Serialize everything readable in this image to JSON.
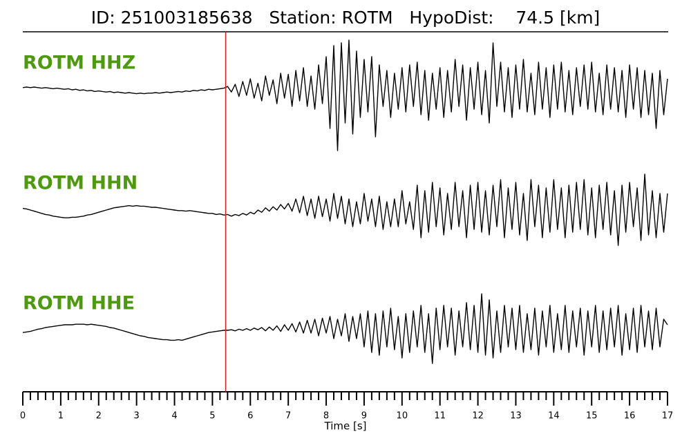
{
  "chart_data": {
    "type": "seismogram",
    "title": "ID: 251003185638   Station: ROTM   HypoDist:    74.5 [km]",
    "xlabel": "Time [s]",
    "x": [
      0,
      0.1,
      0.2,
      0.3,
      0.4,
      0.5,
      0.6,
      0.7,
      0.8,
      0.9,
      1,
      1.1,
      1.2,
      1.3,
      1.4,
      1.5,
      1.6,
      1.7,
      1.8,
      1.9,
      2,
      2.1,
      2.2,
      2.3,
      2.4,
      2.5,
      2.6,
      2.7,
      2.8,
      2.9,
      3,
      3.1,
      3.2,
      3.3,
      3.4,
      3.5,
      3.6,
      3.7,
      3.8,
      3.9,
      4,
      4.1,
      4.2,
      4.3,
      4.4,
      4.5,
      4.6,
      4.7,
      4.8,
      4.9,
      5,
      5.1,
      5.2,
      5.3,
      5.4,
      5.5,
      5.6,
      5.7,
      5.8,
      5.9,
      6,
      6.1,
      6.2,
      6.3,
      6.4,
      6.5,
      6.6,
      6.7,
      6.8,
      6.9,
      7,
      7.1,
      7.2,
      7.3,
      7.4,
      7.5,
      7.6,
      7.7,
      7.8,
      7.9,
      8,
      8.1,
      8.2,
      8.3,
      8.4,
      8.5,
      8.6,
      8.7,
      8.8,
      8.9,
      9,
      9.1,
      9.2,
      9.3,
      9.4,
      9.5,
      9.6,
      9.7,
      9.8,
      9.9,
      10,
      10.1,
      10.2,
      10.3,
      10.4,
      10.5,
      10.6,
      10.7,
      10.8,
      10.9,
      11,
      11.1,
      11.2,
      11.3,
      11.4,
      11.5,
      11.6,
      11.7,
      11.8,
      11.9,
      12,
      12.1,
      12.2,
      12.3,
      12.4,
      12.5,
      12.6,
      12.7,
      12.8,
      12.9,
      13,
      13.1,
      13.2,
      13.3,
      13.4,
      13.5,
      13.6,
      13.7,
      13.8,
      13.9,
      14,
      14.1,
      14.2,
      14.3,
      14.4,
      14.5,
      14.6,
      14.7,
      14.8,
      14.9,
      15,
      15.1,
      15.2,
      15.3,
      15.4,
      15.5,
      15.6,
      15.7,
      15.8,
      15.9,
      16,
      16.1,
      16.2,
      16.3,
      16.4,
      16.5,
      16.6,
      16.7,
      16.8,
      16.9,
      17
    ],
    "xlim": [
      0,
      17
    ],
    "xticks": [
      0,
      1,
      2,
      3,
      4,
      5,
      6,
      7,
      8,
      9,
      10,
      11,
      12,
      13,
      14,
      15,
      16,
      17
    ],
    "xminorticks": [
      0.2,
      0.4,
      0.6,
      0.8,
      1.2,
      1.4,
      1.6,
      1.8,
      2.2,
      2.4,
      2.6,
      2.8,
      3.2,
      3.4,
      3.6,
      3.8,
      4.2,
      4.4,
      4.6,
      4.8,
      5.2,
      5.4,
      5.6,
      5.8,
      6.2,
      6.4,
      6.6,
      6.8,
      7.2,
      7.4,
      7.6,
      7.8,
      8.2,
      8.4,
      8.6,
      8.8,
      9.2,
      9.4,
      9.6,
      9.8,
      10.2,
      10.4,
      10.6,
      10.8,
      11.2,
      11.4,
      11.6,
      11.8,
      12.2,
      12.4,
      12.6,
      12.8,
      13.2,
      13.4,
      13.6,
      13.8,
      14.2,
      14.4,
      14.6,
      14.8,
      15.2,
      15.4,
      15.6,
      15.8,
      16.2,
      16.4,
      16.6,
      16.8
    ],
    "ylim": [
      -1,
      1
    ],
    "pick_time": 5.35,
    "pick_color": "#e8191c",
    "label_color": "#4d9a0e",
    "series": [
      {
        "name": "ROTM HHZ",
        "color": "#000000",
        "values": [
          0.04,
          0.05,
          0.04,
          0.05,
          0.04,
          0.03,
          0.04,
          0.03,
          0.02,
          0.03,
          0.02,
          0.01,
          0.02,
          0.0,
          0.01,
          -0.01,
          0.0,
          -0.02,
          -0.01,
          -0.03,
          -0.02,
          -0.03,
          -0.04,
          -0.03,
          -0.05,
          -0.04,
          -0.05,
          -0.06,
          -0.05,
          -0.06,
          -0.07,
          -0.06,
          -0.07,
          -0.06,
          -0.06,
          -0.05,
          -0.06,
          -0.05,
          -0.04,
          -0.05,
          -0.04,
          -0.03,
          -0.04,
          -0.02,
          -0.03,
          -0.01,
          -0.02,
          0.0,
          -0.01,
          0.01,
          0.0,
          0.01,
          0.02,
          0.03,
          0.06,
          -0.04,
          0.1,
          -0.12,
          0.15,
          -0.1,
          0.2,
          -0.15,
          0.12,
          -0.2,
          0.25,
          -0.1,
          0.18,
          -0.25,
          0.3,
          -0.15,
          0.28,
          -0.3,
          0.35,
          -0.2,
          0.4,
          -0.3,
          0.25,
          -0.35,
          0.45,
          -0.25,
          0.6,
          -0.7,
          0.8,
          -1.1,
          0.85,
          -0.6,
          0.9,
          -0.8,
          0.7,
          -0.5,
          0.55,
          -0.4,
          0.6,
          -0.85,
          0.45,
          -0.3,
          0.35,
          -0.5,
          0.3,
          -0.35,
          0.4,
          -0.4,
          0.45,
          -0.3,
          0.5,
          -0.45,
          0.35,
          -0.55,
          0.3,
          -0.35,
          0.4,
          -0.5,
          0.35,
          -0.4,
          0.55,
          -0.3,
          0.45,
          -0.55,
          0.4,
          -0.35,
          0.5,
          -0.45,
          0.35,
          -0.6,
          0.85,
          -0.3,
          0.5,
          -0.4,
          0.4,
          -0.5,
          0.45,
          -0.35,
          0.55,
          -0.4,
          0.3,
          -0.45,
          0.5,
          -0.35,
          0.4,
          -0.5,
          0.45,
          -0.35,
          0.5,
          -0.4,
          0.35,
          -0.45,
          0.4,
          -0.3,
          0.45,
          -0.35,
          0.5,
          -0.4,
          0.3,
          -0.45,
          0.45,
          -0.35,
          0.4,
          -0.4,
          0.35,
          -0.5,
          0.45,
          -0.35,
          0.4,
          -0.5,
          0.35,
          -0.45,
          0.3,
          -0.7,
          0.35,
          -0.45,
          0.2
        ]
      },
      {
        "name": "ROTM HHN",
        "color": "#000000",
        "values": [
          0.03,
          0.02,
          0.0,
          -0.02,
          -0.04,
          -0.06,
          -0.08,
          -0.09,
          -0.11,
          -0.12,
          -0.13,
          -0.14,
          -0.14,
          -0.13,
          -0.13,
          -0.12,
          -0.11,
          -0.09,
          -0.08,
          -0.06,
          -0.04,
          -0.02,
          0.0,
          0.02,
          0.04,
          0.05,
          0.06,
          0.07,
          0.08,
          0.07,
          0.08,
          0.07,
          0.07,
          0.06,
          0.05,
          0.05,
          0.04,
          0.03,
          0.02,
          0.01,
          0.0,
          -0.01,
          -0.01,
          -0.02,
          -0.01,
          -0.02,
          -0.03,
          -0.04,
          -0.05,
          -0.06,
          -0.06,
          -0.08,
          -0.07,
          -0.09,
          -0.08,
          -0.11,
          -0.08,
          -0.1,
          -0.06,
          -0.09,
          -0.04,
          -0.07,
          0.0,
          -0.04,
          0.04,
          -0.02,
          0.06,
          0.0,
          0.1,
          0.02,
          0.12,
          -0.02,
          0.2,
          -0.05,
          0.25,
          -0.1,
          0.2,
          -0.15,
          0.25,
          -0.12,
          0.2,
          -0.2,
          0.3,
          -0.15,
          0.25,
          -0.25,
          0.2,
          -0.3,
          0.15,
          -0.25,
          0.3,
          -0.2,
          0.2,
          -0.3,
          0.25,
          -0.35,
          0.15,
          -0.3,
          0.2,
          -0.3,
          0.35,
          -0.25,
          0.15,
          -0.35,
          0.45,
          -0.5,
          0.35,
          -0.4,
          0.5,
          -0.3,
          0.4,
          -0.45,
          0.3,
          -0.35,
          0.5,
          -0.3,
          0.35,
          -0.5,
          0.45,
          -0.35,
          0.5,
          -0.4,
          0.35,
          -0.45,
          0.45,
          -0.3,
          0.55,
          -0.5,
          0.4,
          -0.35,
          0.5,
          -0.45,
          0.3,
          -0.55,
          0.55,
          -0.3,
          0.45,
          -0.5,
          0.4,
          -0.4,
          0.55,
          -0.35,
          0.4,
          -0.5,
          0.45,
          -0.4,
          0.5,
          -0.35,
          0.55,
          -0.45,
          0.4,
          -0.5,
          0.45,
          -0.35,
          0.5,
          -0.45,
          0.35,
          -0.64,
          0.45,
          -0.4,
          0.5,
          -0.3,
          0.4,
          -0.55,
          0.65,
          -0.45,
          0.35,
          -0.5,
          0.3,
          -0.4,
          0.3
        ]
      },
      {
        "name": "ROTM HHE",
        "color": "#000000",
        "values": [
          -0.04,
          -0.03,
          -0.02,
          0.0,
          0.02,
          0.03,
          0.05,
          0.06,
          0.07,
          0.08,
          0.09,
          0.1,
          0.1,
          0.1,
          0.11,
          0.11,
          0.11,
          0.1,
          0.11,
          0.1,
          0.09,
          0.08,
          0.07,
          0.05,
          0.04,
          0.02,
          0.0,
          -0.02,
          -0.04,
          -0.06,
          -0.08,
          -0.1,
          -0.11,
          -0.13,
          -0.14,
          -0.15,
          -0.16,
          -0.17,
          -0.17,
          -0.18,
          -0.18,
          -0.17,
          -0.18,
          -0.16,
          -0.14,
          -0.12,
          -0.1,
          -0.08,
          -0.06,
          -0.04,
          -0.03,
          -0.02,
          -0.01,
          0.0,
          0.0,
          0.01,
          -0.01,
          0.02,
          0.0,
          0.03,
          0.0,
          0.04,
          0.01,
          0.05,
          -0.01,
          0.06,
          0.0,
          0.08,
          -0.02,
          0.1,
          0.0,
          0.12,
          -0.03,
          0.15,
          -0.05,
          0.18,
          -0.05,
          0.2,
          -0.1,
          0.22,
          -0.05,
          0.25,
          -0.15,
          0.2,
          -0.1,
          0.3,
          -0.2,
          0.25,
          -0.15,
          0.3,
          -0.3,
          0.35,
          -0.4,
          0.3,
          -0.45,
          0.35,
          -0.3,
          0.4,
          -0.35,
          0.25,
          -0.5,
          0.3,
          -0.4,
          0.35,
          -0.3,
          0.45,
          -0.4,
          0.3,
          -0.6,
          0.4,
          -0.35,
          0.45,
          -0.3,
          0.4,
          -0.45,
          0.35,
          -0.3,
          0.5,
          -0.35,
          0.45,
          -0.4,
          0.66,
          -0.45,
          0.55,
          -0.5,
          0.35,
          -0.4,
          0.45,
          -0.3,
          0.4,
          -0.35,
          0.45,
          -0.4,
          0.3,
          -0.35,
          0.4,
          -0.45,
          0.35,
          -0.3,
          0.45,
          -0.4,
          0.3,
          -0.35,
          0.45,
          -0.4,
          0.35,
          -0.3,
          0.4,
          -0.45,
          0.35,
          -0.3,
          0.45,
          -0.4,
          0.35,
          -0.35,
          0.4,
          -0.3,
          0.45,
          -0.45,
          0.3,
          -0.35,
          0.4,
          -0.4,
          0.45,
          -0.3,
          0.35,
          -0.35,
          0.4,
          -0.3,
          0.2,
          0.1
        ]
      }
    ]
  }
}
